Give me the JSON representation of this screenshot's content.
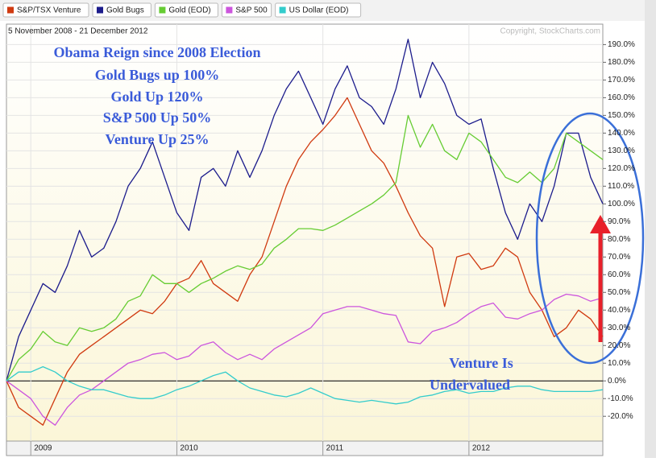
{
  "chart_data": {
    "type": "line",
    "subtitle": "5 November 2008 - 21 December 2012",
    "credit": "Copyright, StockCharts.com",
    "annotations": [
      "Obama Reign since 2008 Election",
      "Gold Bugs up 100%",
      "Gold Up 120%",
      "S&P 500 Up 50%",
      "Venture Up 25%",
      "Venture Is",
      "Undervalued"
    ],
    "categories": [
      null,
      null,
      "2009",
      null,
      null,
      null,
      null,
      null,
      null,
      null,
      null,
      null,
      null,
      null,
      "2010",
      null,
      null,
      null,
      null,
      null,
      null,
      null,
      null,
      null,
      null,
      null,
      "2011",
      null,
      null,
      null,
      null,
      null,
      null,
      null,
      null,
      null,
      null,
      null,
      "2012",
      null,
      null,
      null,
      null,
      null,
      null,
      null,
      null,
      null,
      null,
      null
    ],
    "series": [
      {
        "name": "S&P/TSX Venture",
        "color": "#d03a10",
        "values": [
          0,
          -15,
          -20,
          -25,
          -10,
          5,
          15,
          20,
          25,
          30,
          35,
          40,
          38,
          45,
          55,
          58,
          68,
          55,
          50,
          45,
          60,
          70,
          90,
          110,
          125,
          135,
          142,
          150,
          160,
          145,
          130,
          123,
          110,
          95,
          82,
          75,
          42,
          70,
          72,
          63,
          65,
          75,
          70,
          50,
          40,
          25,
          30,
          40,
          35,
          25
        ]
      },
      {
        "name": "Gold Bugs",
        "color": "#1c1c8c",
        "values": [
          0,
          25,
          40,
          55,
          50,
          65,
          85,
          70,
          75,
          90,
          110,
          120,
          135,
          115,
          95,
          85,
          115,
          120,
          110,
          130,
          115,
          130,
          150,
          165,
          175,
          160,
          145,
          165,
          178,
          160,
          155,
          145,
          165,
          193,
          160,
          180,
          168,
          150,
          145,
          148,
          120,
          95,
          80,
          100,
          90,
          110,
          140,
          140,
          115,
          100
        ]
      },
      {
        "name": "Gold (EOD)",
        "color": "#66cc33",
        "values": [
          0,
          12,
          18,
          28,
          22,
          20,
          30,
          28,
          30,
          35,
          45,
          48,
          60,
          55,
          55,
          50,
          55,
          58,
          62,
          65,
          63,
          66,
          75,
          80,
          86,
          86,
          85,
          88,
          92,
          96,
          100,
          105,
          112,
          150,
          132,
          145,
          130,
          125,
          140,
          135,
          125,
          115,
          112,
          118,
          112,
          120,
          140,
          135,
          130,
          125
        ]
      },
      {
        "name": "S&P 500",
        "color": "#cc55dd",
        "values": [
          0,
          -5,
          -10,
          -20,
          -25,
          -15,
          -8,
          -5,
          0,
          5,
          10,
          12,
          15,
          16,
          12,
          14,
          20,
          22,
          16,
          12,
          15,
          12,
          18,
          22,
          26,
          30,
          38,
          40,
          42,
          42,
          40,
          38,
          37,
          22,
          21,
          28,
          30,
          33,
          38,
          42,
          44,
          36,
          35,
          38,
          40,
          46,
          49,
          48,
          45,
          47
        ]
      },
      {
        "name": "US Dollar (EOD)",
        "color": "#33cccc",
        "values": [
          0,
          5,
          5,
          8,
          5,
          0,
          -3,
          -5,
          -5,
          -7,
          -9,
          -10,
          -10,
          -8,
          -5,
          -3,
          0,
          3,
          5,
          0,
          -4,
          -6,
          -8,
          -9,
          -7,
          -4,
          -7,
          -10,
          -11,
          -12,
          -11,
          -12,
          -13,
          -12,
          -9,
          -8,
          -6,
          -5,
          -7,
          -6,
          -6,
          -4,
          -3,
          -3,
          -5,
          -6,
          -6,
          -6,
          -6,
          -5
        ]
      }
    ],
    "ylim": [
      -34,
      197
    ],
    "yticks": [
      {
        "value": -20,
        "label": "-20.0%"
      },
      {
        "value": -10,
        "label": "-10.0%"
      },
      {
        "value": 0,
        "label": "0.0%"
      },
      {
        "value": 10,
        "label": "10.0%"
      },
      {
        "value": 20,
        "label": "20.0%"
      },
      {
        "value": 30,
        "label": "30.0%"
      },
      {
        "value": 40,
        "label": "40.0%"
      },
      {
        "value": 50,
        "label": "50.0%"
      },
      {
        "value": 60,
        "label": "60.0%"
      },
      {
        "value": 70,
        "label": "70.0%"
      },
      {
        "value": 80,
        "label": "80.0%"
      },
      {
        "value": 90,
        "label": "90.0%"
      },
      {
        "value": 100,
        "label": "100.0%"
      },
      {
        "value": 110,
        "label": "110.0%"
      },
      {
        "value": 120,
        "label": "120.0%"
      },
      {
        "value": 130,
        "label": "130.0%"
      },
      {
        "value": 140,
        "label": "140.0%"
      },
      {
        "value": 150,
        "label": "150.0%"
      },
      {
        "value": 160,
        "label": "160.0%"
      },
      {
        "value": 170,
        "label": "170.0%"
      },
      {
        "value": 180,
        "label": "180.0%"
      },
      {
        "value": 190,
        "label": "190.0%"
      }
    ],
    "grid": true
  }
}
